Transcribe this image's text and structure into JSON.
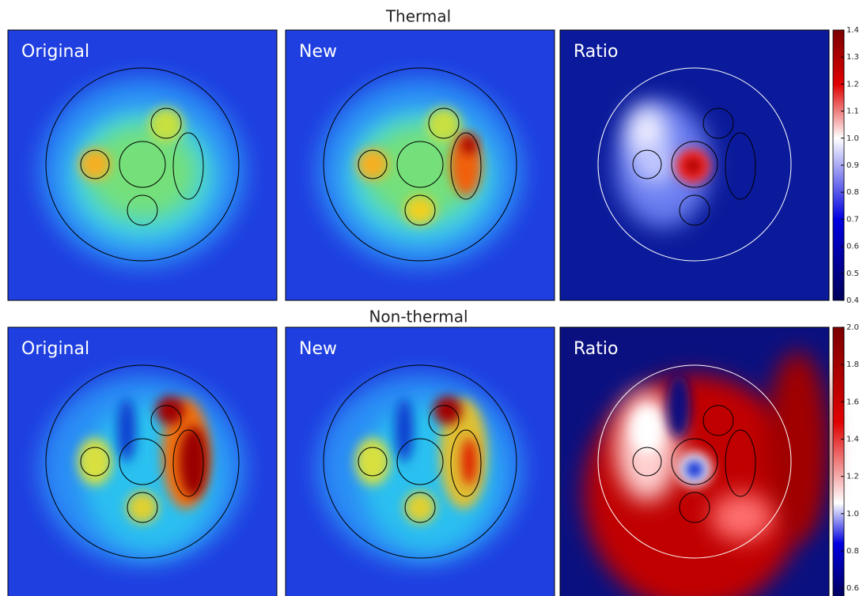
{
  "rows": [
    {
      "title": "Thermal",
      "panels": [
        "Original",
        "New",
        "Ratio"
      ],
      "colorbar": {
        "ylim": [
          0.4,
          1.4
        ],
        "yticks": [
          0.4,
          0.5,
          0.6,
          0.7,
          0.8,
          0.9,
          {
            "value": 1,
            "label": "1.0"
          },
          1.1,
          1.2,
          1.3,
          1.4
        ]
      }
    },
    {
      "title": "Non-thermal",
      "panels": [
        "Original",
        "New",
        "Ratio"
      ],
      "colorbar": {
        "ylim": [
          0.55,
          2.0
        ],
        "yticks": [
          0.6,
          0.8,
          {
            "value": 1,
            "label": "1.0"
          },
          1.2,
          1.4,
          1.6,
          1.8,
          {
            "value": 2,
            "label": "2.0"
          }
        ]
      }
    }
  ]
}
